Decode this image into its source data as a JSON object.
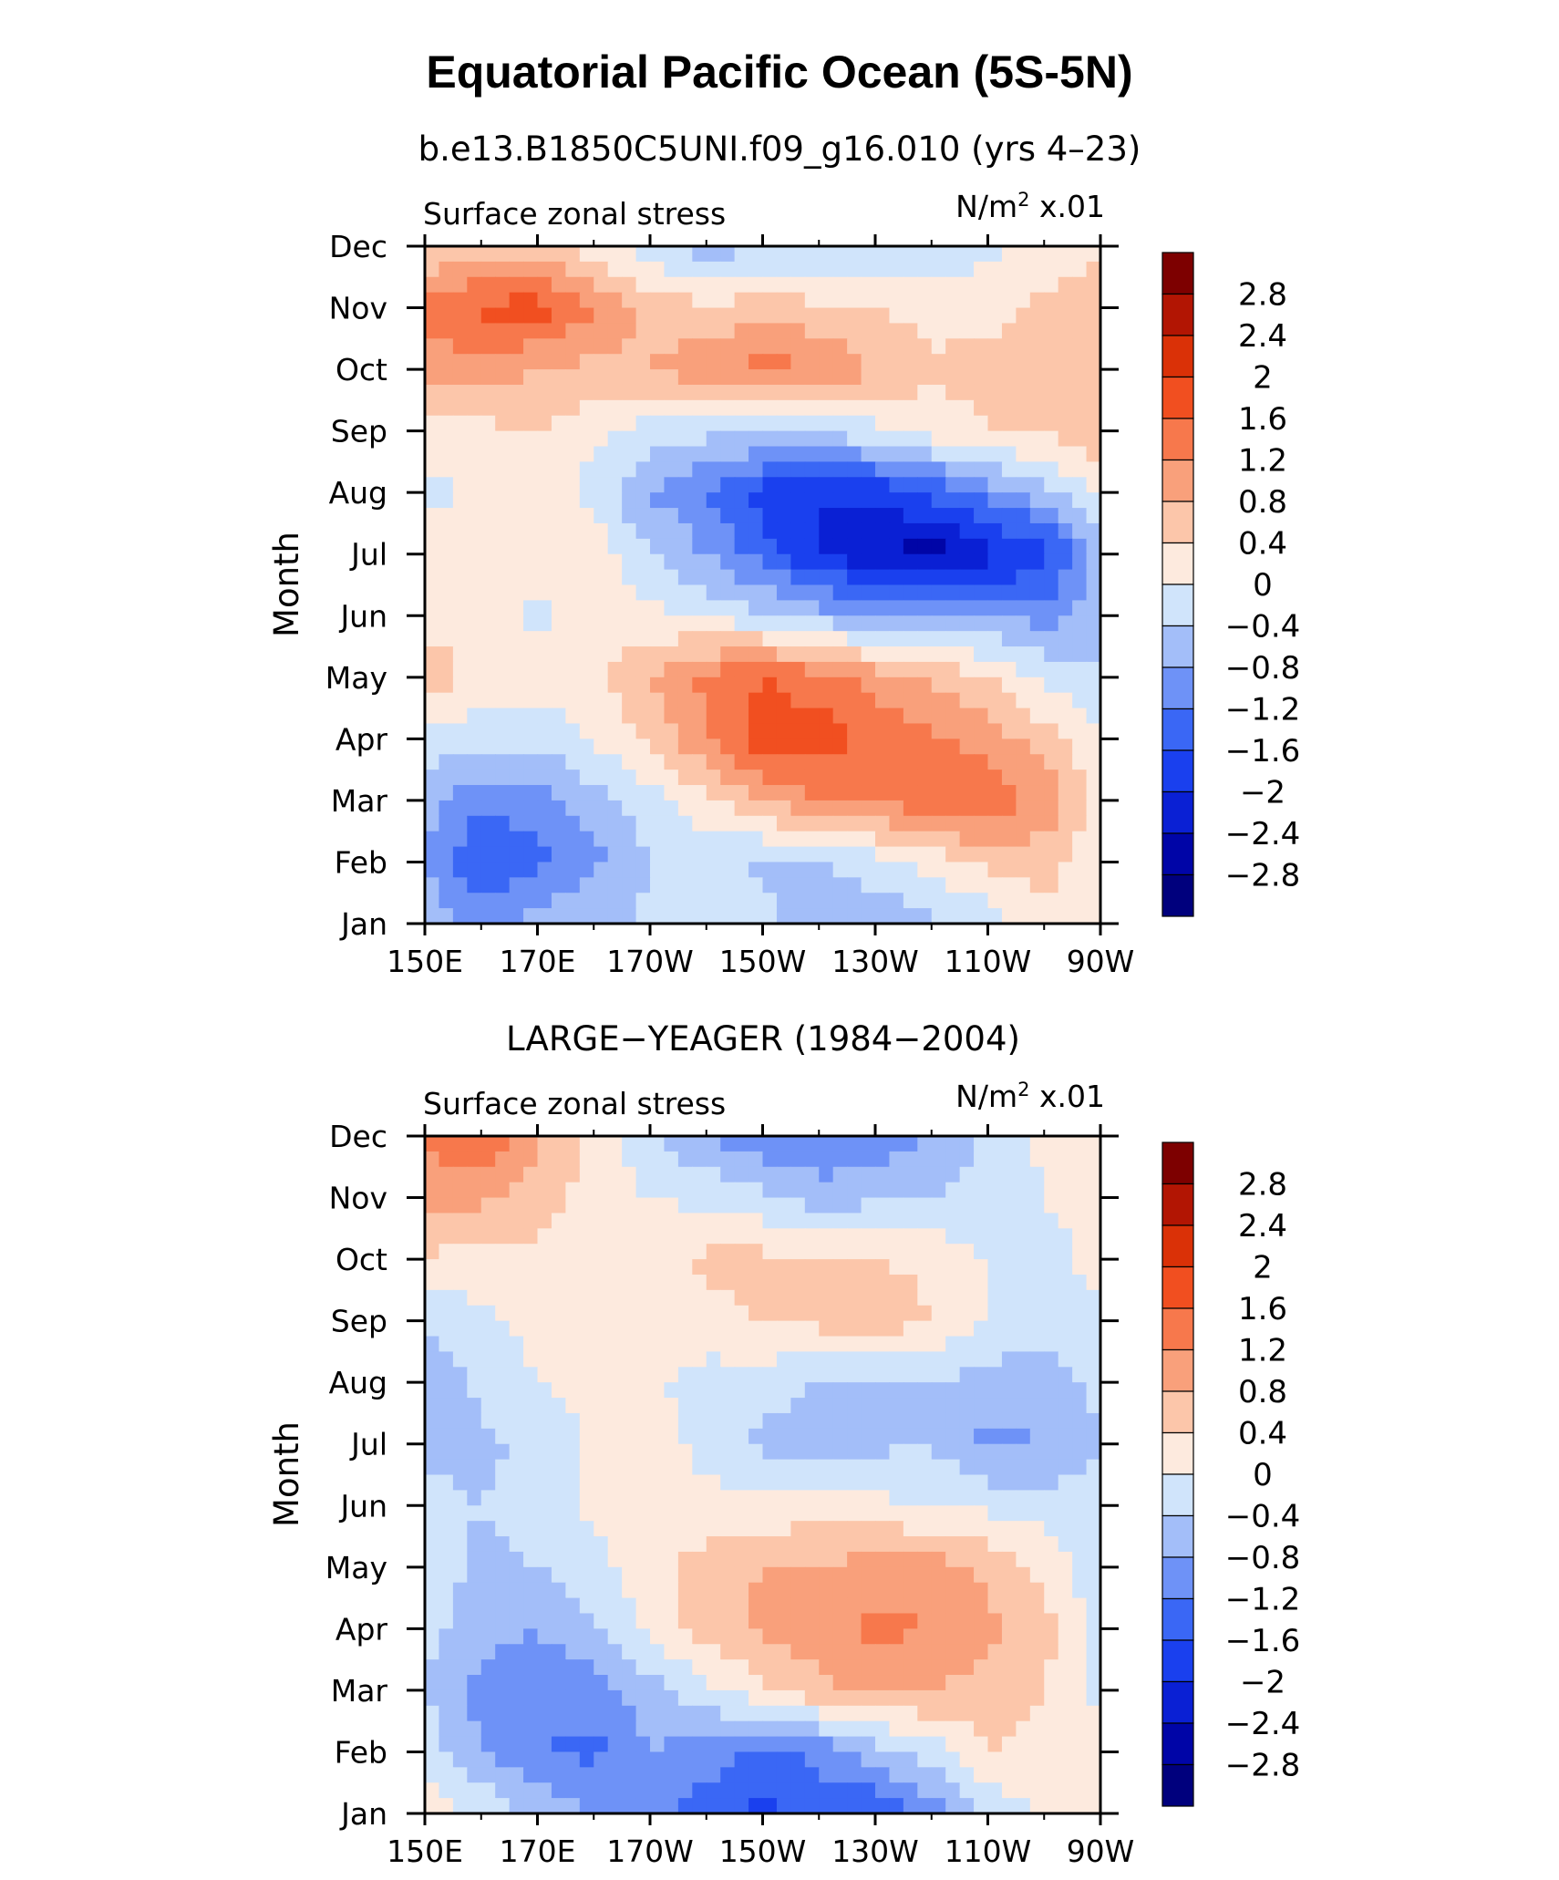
{
  "figure_title": "Equatorial Pacific Ocean (5S-5N)",
  "colors": {
    "levels": [
      "#00007d",
      "#0005a7",
      "#0a20d4",
      "#1a40ee",
      "#3a67f5",
      "#6e92f7",
      "#a3bef9",
      "#d0e4fb",
      "#fdeade",
      "#fcc6aa",
      "#f9a07b",
      "#f7784c",
      "#f14f20",
      "#da3107",
      "#b21503",
      "#7d0000"
    ]
  },
  "chart_data": [
    {
      "type": "heatmap",
      "title": "b.e13.B1850C5UNI.f09_g16.010 (yrs 4–23)",
      "left_label": "Surface zonal stress",
      "right_label_base": "N/m",
      "right_label_exp": "2",
      "right_label_tail": " x.01",
      "ylabel": "Month",
      "x_tick_labels": [
        "150E",
        "170E",
        "170W",
        "150W",
        "130W",
        "110W",
        "90W"
      ],
      "y_tick_labels": [
        "Jan",
        "Feb",
        "Mar",
        "Apr",
        "May",
        "Jun",
        "Jul",
        "Aug",
        "Sep",
        "Oct",
        "Nov",
        "Dec"
      ],
      "colorbar_labels": [
        "2.8",
        "2.4",
        "2",
        "1.6",
        "1.2",
        "0.8",
        "0.4",
        "0",
        "−0.4",
        "−0.8",
        "−1.2",
        "−1.6",
        "−2",
        "−2.4",
        "−2.8"
      ],
      "x_lon": [
        150,
        160,
        170,
        180,
        190,
        200,
        210,
        220,
        230,
        240,
        250,
        260,
        270
      ],
      "z": [
        [
          -0.5,
          -1.0,
          -0.6,
          -0.5,
          -0.3,
          -0.1,
          -0.3,
          -0.6,
          -0.7,
          -0.5,
          -0.3,
          0.3,
          0.0
        ],
        [
          -0.8,
          -1.6,
          -1.3,
          -0.9,
          -0.4,
          -0.2,
          -0.5,
          -0.4,
          -0.2,
          0.2,
          0.5,
          0.6,
          0.0
        ],
        [
          -0.6,
          -1.1,
          -1.0,
          -0.6,
          -0.2,
          0.3,
          0.8,
          1.2,
          1.3,
          1.5,
          1.5,
          1.1,
          0.2
        ],
        [
          -0.1,
          -0.3,
          -0.3,
          0.1,
          0.5,
          1.2,
          1.8,
          1.8,
          1.5,
          1.3,
          1.0,
          0.6,
          0.0
        ],
        [
          0.6,
          0.3,
          0.2,
          0.3,
          0.8,
          1.3,
          1.6,
          1.4,
          1.0,
          0.7,
          0.4,
          -0.1,
          -0.4
        ],
        [
          0.3,
          0.2,
          -0.1,
          0.2,
          0.1,
          -0.1,
          -0.3,
          -0.6,
          -0.8,
          -0.8,
          -0.8,
          -1.0,
          -0.6
        ],
        [
          0.4,
          0.1,
          0.2,
          0.3,
          -0.4,
          -0.8,
          -1.4,
          -2.0,
          -2.4,
          -2.6,
          -2.2,
          -1.8,
          -0.6
        ],
        [
          -0.2,
          0.2,
          0.3,
          -0.2,
          -0.8,
          -1.2,
          -1.8,
          -2.0,
          -1.9,
          -1.5,
          -1.0,
          -0.6,
          0.2
        ],
        [
          0.3,
          0.3,
          0.4,
          0.1,
          -0.2,
          -0.3,
          -0.3,
          -0.3,
          -0.1,
          0.2,
          0.4,
          0.5,
          0.6
        ],
        [
          1.0,
          1.0,
          0.8,
          0.7,
          0.8,
          1.1,
          1.4,
          1.2,
          0.8,
          0.5,
          0.5,
          0.5,
          0.6
        ],
        [
          1.4,
          1.7,
          1.8,
          1.2,
          0.6,
          0.5,
          0.6,
          0.5,
          0.4,
          0.2,
          0.3,
          0.5,
          0.6
        ],
        [
          0.4,
          0.5,
          0.5,
          0.2,
          -0.3,
          -0.6,
          -0.5,
          -0.4,
          -0.3,
          -0.3,
          -0.1,
          0.1,
          0.4
        ]
      ]
    },
    {
      "type": "heatmap",
      "title": "LARGE−YEAGER (1984−2004)",
      "left_label": "Surface zonal stress",
      "right_label_base": "N/m",
      "right_label_exp": "2",
      "right_label_tail": " x.01",
      "ylabel": "Month",
      "x_tick_labels": [
        "150E",
        "170E",
        "170W",
        "150W",
        "130W",
        "110W",
        "90W"
      ],
      "y_tick_labels": [
        "Jan",
        "Feb",
        "Mar",
        "Apr",
        "May",
        "Jun",
        "Jul",
        "Aug",
        "Sep",
        "Oct",
        "Nov",
        "Dec"
      ],
      "colorbar_labels": [
        "2.8",
        "2.4",
        "2",
        "1.6",
        "1.2",
        "0.8",
        "0.4",
        "0",
        "−0.4",
        "−0.8",
        "−1.2",
        "−1.6",
        "−2",
        "−2.4",
        "−2.8"
      ],
      "x_lon": [
        150,
        160,
        170,
        180,
        190,
        200,
        210,
        220,
        230,
        240,
        250,
        260,
        270
      ],
      "z": [
        [
          0.2,
          0.0,
          -0.5,
          -0.8,
          -1.0,
          -1.4,
          -1.8,
          -1.4,
          -1.6,
          -1.0,
          -0.3,
          0.1,
          0.1
        ],
        [
          -0.2,
          -0.8,
          -1.2,
          -1.3,
          -0.8,
          -1.0,
          -1.3,
          -1.1,
          -0.6,
          -0.2,
          0.4,
          0.3,
          0.1
        ],
        [
          -0.4,
          -1.0,
          -1.1,
          -1.0,
          -0.6,
          -0.1,
          0.3,
          0.7,
          0.9,
          0.8,
          0.6,
          0.4,
          -0.1
        ],
        [
          -0.3,
          -0.6,
          -0.8,
          -0.4,
          0.1,
          0.6,
          0.9,
          1.0,
          1.3,
          1.2,
          0.9,
          0.6,
          -0.2
        ],
        [
          -0.2,
          -0.5,
          -0.4,
          -0.1,
          0.2,
          0.6,
          0.8,
          0.8,
          1.0,
          1.0,
          0.7,
          0.3,
          -0.3
        ],
        [
          -0.3,
          -0.4,
          -0.2,
          0.1,
          0.1,
          0.1,
          0.1,
          0.2,
          0.1,
          0.0,
          -0.1,
          -0.2,
          -0.3
        ],
        [
          -0.5,
          -0.5,
          -0.3,
          0.1,
          0.2,
          -0.1,
          -0.5,
          -0.6,
          -0.5,
          -0.4,
          -0.9,
          -0.8,
          -0.4
        ],
        [
          -0.7,
          -0.3,
          0.0,
          0.1,
          0.1,
          -0.2,
          -0.2,
          -0.4,
          -0.5,
          -0.4,
          -0.6,
          -0.6,
          -0.3
        ],
        [
          -0.3,
          -0.1,
          0.1,
          0.2,
          0.2,
          0.3,
          0.4,
          0.5,
          0.7,
          0.4,
          0.0,
          -0.2,
          -0.2
        ],
        [
          0.4,
          0.2,
          0.3,
          0.2,
          0.2,
          0.5,
          0.5,
          0.5,
          0.4,
          0.3,
          0.0,
          -0.2,
          0.2
        ],
        [
          0.9,
          0.9,
          0.6,
          0.2,
          0.0,
          -0.1,
          -0.3,
          -0.6,
          -0.5,
          -0.4,
          -0.3,
          0.0,
          0.2
        ],
        [
          1.3,
          1.6,
          0.9,
          0.3,
          -0.3,
          -0.8,
          -1.1,
          -1.2,
          -1.1,
          -0.8,
          -0.3,
          0.1,
          0.1
        ]
      ]
    }
  ]
}
